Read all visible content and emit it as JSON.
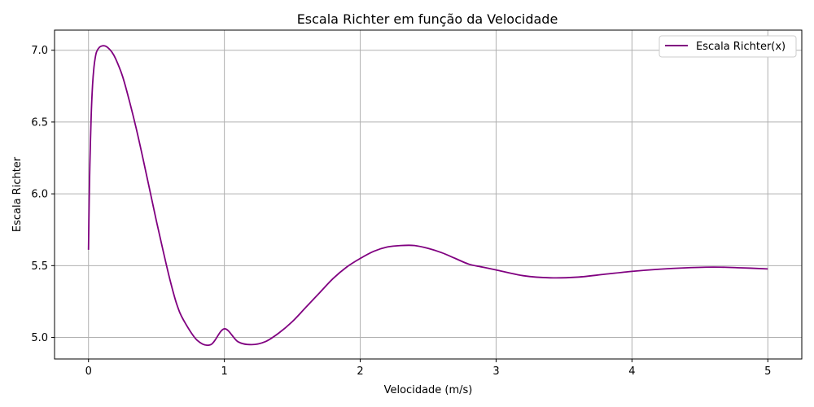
{
  "chart_data": {
    "type": "line",
    "title": "Escala Richter em função da Velocidade",
    "xlabel": "Velocidade (m/s)",
    "ylabel": "Escala Richter",
    "xlim": [
      -0.25,
      5.25
    ],
    "ylim": [
      4.85,
      7.14
    ],
    "xticks": [
      0,
      1,
      2,
      3,
      4,
      5
    ],
    "xtick_labels": [
      "0",
      "1",
      "2",
      "3",
      "4",
      "5"
    ],
    "yticks": [
      5.0,
      5.5,
      6.0,
      6.5,
      7.0
    ],
    "ytick_labels": [
      "5.0",
      "5.5",
      "6.0",
      "6.5",
      "7.0"
    ],
    "grid": true,
    "legend": "top-right",
    "colors": {
      "series": "#800080",
      "grid": "#b0b0b0",
      "axes": "#000000"
    },
    "series": [
      {
        "name": "Escala Richter(x)",
        "x": [
          0,
          0.005,
          0.01,
          0.02,
          0.03,
          0.04,
          0.05,
          0.06,
          0.08,
          0.1,
          0.12,
          0.14,
          0.17,
          0.2,
          0.25,
          0.3,
          0.35,
          0.4,
          0.45,
          0.5,
          0.55,
          0.6,
          0.65,
          0.7,
          0.8,
          0.9,
          1.0,
          1.1,
          1.2,
          1.3,
          1.4,
          1.5,
          1.6,
          1.7,
          1.8,
          1.9,
          2.0,
          2.1,
          2.2,
          2.3,
          2.4,
          2.5,
          2.6,
          2.7,
          2.8,
          2.9,
          3.0,
          3.2,
          3.4,
          3.6,
          3.8,
          4.0,
          4.2,
          4.4,
          4.6,
          4.8,
          5.0
        ],
        "y": [
          5.61,
          5.95,
          6.2,
          6.55,
          6.76,
          6.88,
          6.95,
          6.99,
          7.02,
          7.03,
          7.03,
          7.02,
          6.99,
          6.94,
          6.82,
          6.65,
          6.46,
          6.25,
          6.03,
          5.81,
          5.6,
          5.4,
          5.23,
          5.12,
          4.98,
          4.95,
          5.06,
          4.97,
          4.95,
          4.97,
          5.03,
          5.11,
          5.21,
          5.31,
          5.41,
          5.49,
          5.55,
          5.6,
          5.63,
          5.64,
          5.64,
          5.62,
          5.59,
          5.55,
          5.51,
          5.49,
          5.47,
          5.43,
          5.415,
          5.42,
          5.44,
          5.46,
          5.475,
          5.485,
          5.49,
          5.485,
          5.477
        ]
      }
    ]
  }
}
